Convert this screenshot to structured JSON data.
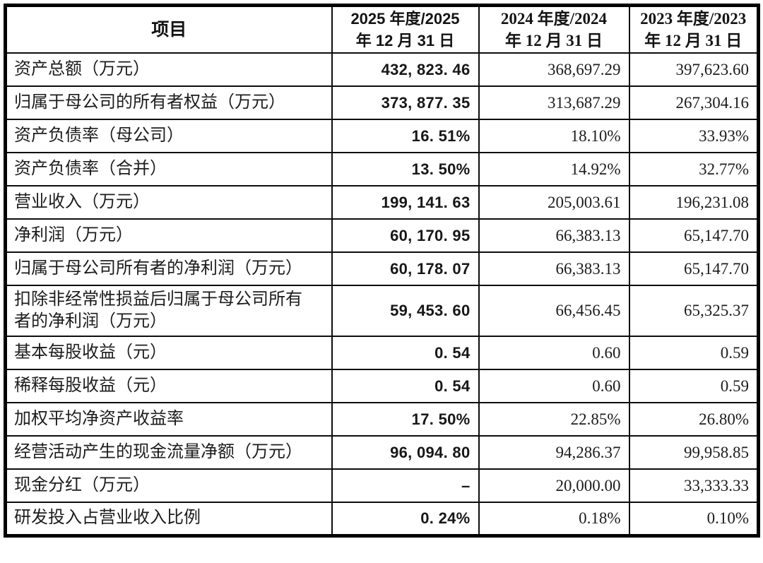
{
  "colors": {
    "background": "#ffffff",
    "text": "#1c1c1c",
    "border": "#000000"
  },
  "table": {
    "header": {
      "item": "项目",
      "col2025": "2025 年度/2025\n年 12 月 31 日",
      "col2024": "2024 年度/2024\n年 12 月 31 日",
      "col2023": "2023 年度/2023\n年 12 月 31 日"
    },
    "rows": [
      {
        "label": "资产总额（万元）",
        "y2025": "432, 823. 46",
        "y2024": "368,697.29",
        "y2023": "397,623.60"
      },
      {
        "label": "归属于母公司的所有者权益（万元）",
        "y2025": "373, 877. 35",
        "y2024": "313,687.29",
        "y2023": "267,304.16"
      },
      {
        "label": "资产负债率（母公司）",
        "y2025": "16. 51%",
        "y2024": "18.10%",
        "y2023": "33.93%"
      },
      {
        "label": "资产负债率（合并）",
        "y2025": "13. 50%",
        "y2024": "14.92%",
        "y2023": "32.77%"
      },
      {
        "label": "营业收入（万元）",
        "y2025": "199, 141. 63",
        "y2024": "205,003.61",
        "y2023": "196,231.08"
      },
      {
        "label": "净利润（万元）",
        "y2025": "60, 170. 95",
        "y2024": "66,383.13",
        "y2023": "65,147.70"
      },
      {
        "label": "归属于母公司所有者的净利润（万元）",
        "y2025": "60, 178. 07",
        "y2024": "66,383.13",
        "y2023": "65,147.70"
      },
      {
        "label": "扣除非经常性损益后归属于母公司所有\n者的净利润（万元）",
        "y2025": "59, 453. 60",
        "y2024": "66,456.45",
        "y2023": "65,325.37"
      },
      {
        "label": "基本每股收益（元）",
        "y2025": "0. 54",
        "y2024": "0.60",
        "y2023": "0.59"
      },
      {
        "label": "稀释每股收益（元）",
        "y2025": "0. 54",
        "y2024": "0.60",
        "y2023": "0.59"
      },
      {
        "label": "加权平均净资产收益率",
        "y2025": "17. 50%",
        "y2024": "22.85%",
        "y2023": "26.80%"
      },
      {
        "label": "经营活动产生的现金流量净额（万元）",
        "y2025": "96, 094. 80",
        "y2024": "94,286.37",
        "y2023": "99,958.85"
      },
      {
        "label": "现金分红（万元）",
        "y2025": "–",
        "y2024": "20,000.00",
        "y2023": "33,333.33"
      },
      {
        "label": "研发投入占营业收入比例",
        "y2025": "0. 24%",
        "y2024": "0.18%",
        "y2023": "0.10%"
      }
    ]
  }
}
